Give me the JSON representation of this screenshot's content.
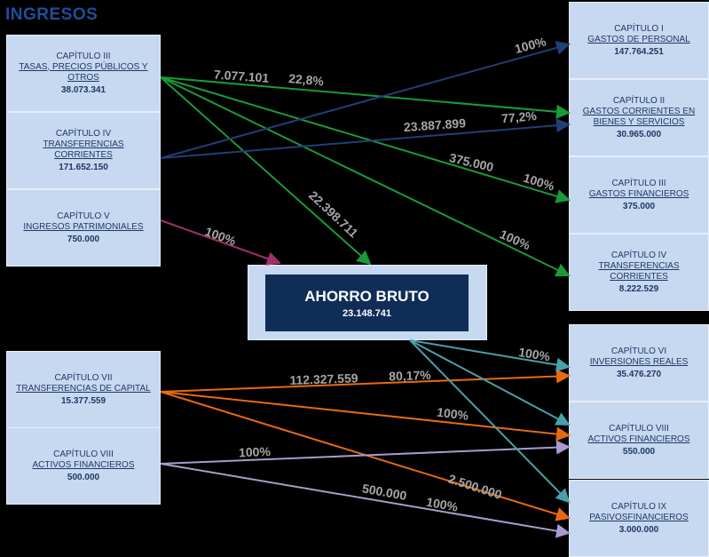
{
  "title": "INGRESOS",
  "income": [
    {
      "chapter": "CAPÍTULO III",
      "name": "TASAS, PRECIOS PÚBLICOS Y OTROS",
      "amount": "38.073.341"
    },
    {
      "chapter": "CAPÍTULO IV",
      "name": "TRANSFERENCIAS CORRIENTES",
      "amount": "171.652.150"
    },
    {
      "chapter": "CAPÍTULO V",
      "name": "INGRESOS PATRIMONIALES",
      "amount": "750.000"
    },
    {
      "chapter": "CAPÍTULO VII",
      "name": "TRANSFERENCIAS DE CAPITAL",
      "amount": "15.377.559"
    },
    {
      "chapter": "CAPÍTULO VIII",
      "name": "ACTIVOS FINANCIEROS",
      "amount": "500.000"
    }
  ],
  "expenses": [
    {
      "chapter": "CAPÍTULO I",
      "name": "GASTOS DE PERSONAL",
      "amount": "147.764.251"
    },
    {
      "chapter": "CAPÍTULO II",
      "name": "GASTOS CORRIENTES EN BIENES Y SERVICIOS",
      "amount": "30.965.000"
    },
    {
      "chapter": "CAPÍTULO III",
      "name": "GASTOS FINANCIEROS",
      "amount": "375.000"
    },
    {
      "chapter": "CAPÍTULO IV",
      "name": "TRANSFERENCIAS CORRIENTES",
      "amount": "8.222.529"
    },
    {
      "chapter": "CAPÍTULO VI",
      "name": "INVERSIONES REALES",
      "amount": "35.476.270"
    },
    {
      "chapter": "CAPÍTULO VIII",
      "name": "ACTIVOS FINANCIEROS",
      "amount": "550.000"
    },
    {
      "chapter": "CAPÍTULO IX",
      "name": "PASIVOSFINANCIEROS",
      "amount": "3.000.000"
    }
  ],
  "center": {
    "name": "AHORRO BRUTO",
    "amount": "23.148.741"
  },
  "flow_labels": [
    "7.077.101",
    "22,8%",
    "23.887.899",
    "77,2%",
    "100%",
    "375.000",
    "100%",
    "100%",
    "22.398.711",
    "100%",
    "112.327.559",
    "80,17%",
    "100%",
    "2.500.000",
    "100%",
    "500.000",
    "100%",
    "100%"
  ]
}
